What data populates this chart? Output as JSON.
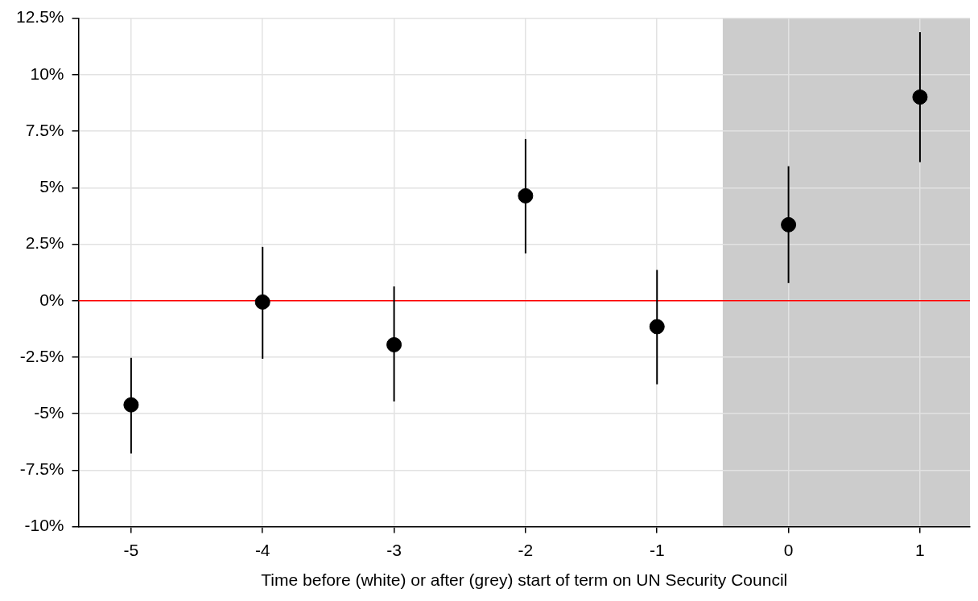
{
  "chart_data": {
    "type": "scatter",
    "xlabel": "Time before (white) or after (grey) start of term on UN Security Council",
    "x": [
      -5,
      -4,
      -3,
      -2,
      -1,
      0,
      1
    ],
    "values": [
      -4.61,
      -0.06,
      -1.95,
      4.64,
      -1.15,
      3.36,
      9.01
    ],
    "errors": [
      [
        -6.76,
        -2.53
      ],
      [
        -2.57,
        2.38
      ],
      [
        -4.46,
        0.63
      ],
      [
        2.09,
        7.15
      ],
      [
        -3.7,
        1.36
      ],
      [
        0.78,
        5.95
      ],
      [
        6.13,
        11.88
      ]
    ],
    "color": "#000000",
    "marker": "circle",
    "xlim": [
      -5.4,
      1.38
    ],
    "xticks": [
      -5,
      -4,
      -3,
      -2,
      -1,
      0,
      1
    ],
    "ylim": [
      -10,
      12.5
    ],
    "yticks": [
      {
        "value": -10,
        "label": "-10%"
      },
      {
        "value": -7.5,
        "label": "-7.5%"
      },
      {
        "value": -5,
        "label": "-5%"
      },
      {
        "value": -2.5,
        "label": "-2.5%"
      },
      {
        "value": 0,
        "label": "0%"
      },
      {
        "value": 2.5,
        "label": "2.5%"
      },
      {
        "value": 5,
        "label": "5%"
      },
      {
        "value": 7.5,
        "label": "7.5%"
      },
      {
        "value": 10,
        "label": "10%"
      },
      {
        "value": 12.5,
        "label": "12.5%"
      }
    ],
    "ref_lines": [
      {
        "axis": "y",
        "value": 0,
        "color": "#ff0000"
      }
    ],
    "bands": [
      {
        "axis": "x",
        "from": -0.5,
        "to": 1.38,
        "color": "#cccccc"
      }
    ],
    "grid": true,
    "legend": false
  }
}
